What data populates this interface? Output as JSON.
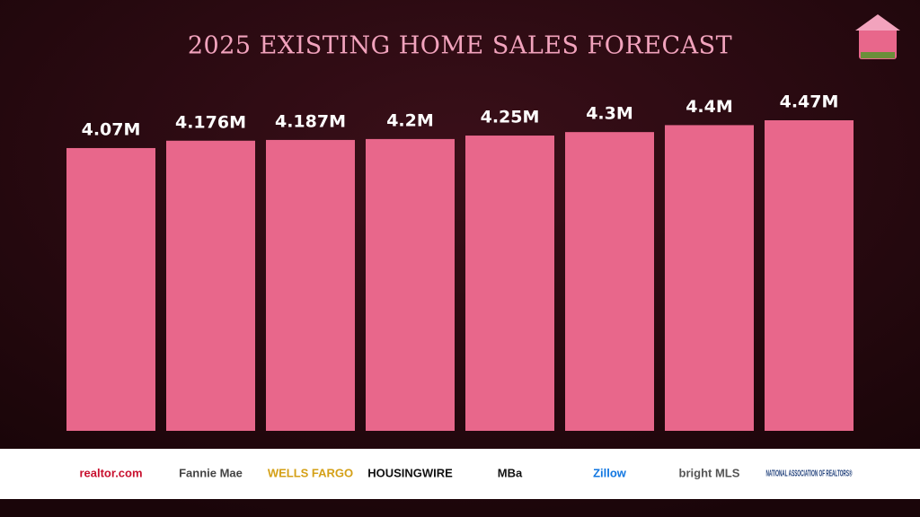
{
  "chart_data": {
    "type": "bar",
    "title": "2025 EXISTING HOME SALES FORECAST",
    "categories": [
      "realtor.com",
      "Fannie Mae",
      "WELLS FARGO",
      "HOUSINGWIRE",
      "MBa",
      "Zillow",
      "bright MLS",
      "NATIONAL ASSOCIATION OF REALTORS®"
    ],
    "category_colors": [
      "#c8102e",
      "#444444",
      "#d4a017",
      "#111111",
      "#111111",
      "#1277e1",
      "#555555",
      "#1f3f7a"
    ],
    "values": [
      4.07,
      4.176,
      4.187,
      4.2,
      4.25,
      4.3,
      4.4,
      4.47
    ],
    "value_labels": [
      "4.07M",
      "4.176M",
      "4.187M",
      "4.2M",
      "4.25M",
      "4.3M",
      "4.4M",
      "4.47M"
    ],
    "color": "#e8678b"
  }
}
